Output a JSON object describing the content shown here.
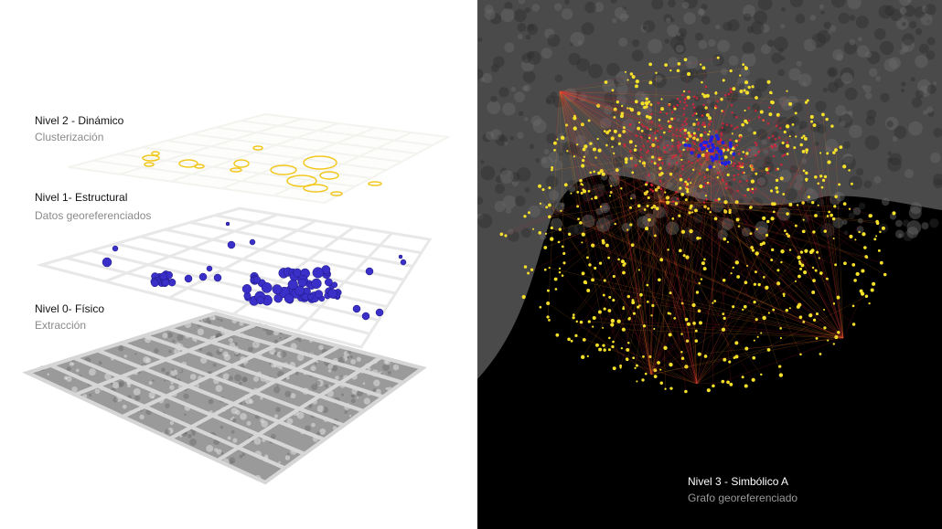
{
  "levels": [
    {
      "title": "Nivel 2 - Dinámico",
      "subtitle": "Clusterización"
    },
    {
      "title": "Nivel 1- Estructural",
      "subtitle": "Datos georeferenciados"
    },
    {
      "title": "Nivel 0- Físico",
      "subtitle": "Extracción"
    },
    {
      "title": "Nivel 3 - Simbólico A",
      "subtitle": "Grafo georeferenciado"
    }
  ],
  "colors": {
    "cluster": "#f2c81e",
    "node": "#3a2fc8",
    "edge_red": "#e0203a",
    "edge_yellow": "#f5e02a",
    "background_right": "#000000"
  }
}
